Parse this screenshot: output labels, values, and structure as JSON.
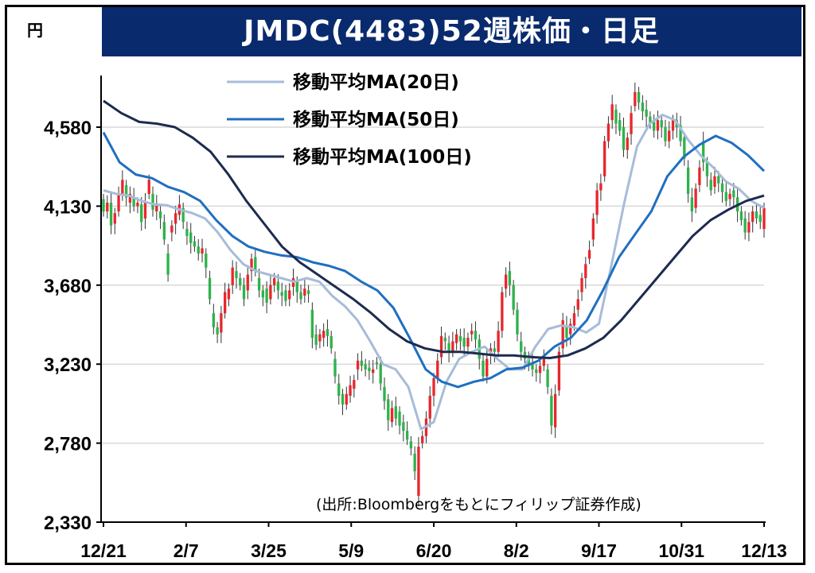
{
  "header": {
    "title": "JMDC(4483)52週株価・日足",
    "unit": "円"
  },
  "source": "(出所:Bloombergをもとにフィリップ証券作成)",
  "colors": {
    "title_bg": "#0a2a6e",
    "up": "#e8272d",
    "down": "#2db34a",
    "ma20": "#a6bcd9",
    "ma50": "#1f6fc0",
    "ma100": "#1d2b4f",
    "grid": "#d9d9d9"
  },
  "chart_data": {
    "type": "candlestick",
    "title": "JMDC(4483)52週株価・日足",
    "ylabel": "円",
    "ylim": [
      2330,
      4800
    ],
    "yticks": [
      2330,
      2780,
      3230,
      3680,
      4130,
      4580
    ],
    "ytick_labels": [
      "2,330",
      "2,780",
      "3,230",
      "3,680",
      "4,130",
      "4,580"
    ],
    "xtick_labels": [
      "12/21",
      "2/7",
      "3/25",
      "5/9",
      "6/20",
      "8/2",
      "9/17",
      "10/31",
      "12/13"
    ],
    "grid": "horizontal",
    "legend_position": "top-center",
    "series": [
      {
        "name": "移動平均MA(20日)",
        "key": "ma20",
        "values": [
          4220,
          4200,
          4190,
          4160,
          4140,
          4135,
          4110,
          4090,
          4060,
          3980,
          3880,
          3800,
          3760,
          3740,
          3720,
          3700,
          3720,
          3700,
          3620,
          3560,
          3480,
          3360,
          3230,
          3200,
          3100,
          2860,
          2900,
          3130,
          3260,
          3300,
          3330,
          3260,
          3200,
          3200,
          3330,
          3430,
          3450,
          3440,
          3410,
          3460,
          3800,
          4150,
          4470,
          4600,
          4650,
          4620,
          4510,
          4420,
          4350,
          4270,
          4230,
          4160,
          4120
        ]
      },
      {
        "name": "移動平均MA(50日)",
        "key": "ma50",
        "values": [
          4550,
          4380,
          4310,
          4290,
          4240,
          4210,
          4160,
          4050,
          3960,
          3900,
          3870,
          3850,
          3840,
          3810,
          3790,
          3760,
          3700,
          3650,
          3550,
          3380,
          3200,
          3130,
          3100,
          3130,
          3150,
          3200,
          3210,
          3250,
          3330,
          3380,
          3480,
          3650,
          3840,
          3970,
          4100,
          4300,
          4410,
          4480,
          4530,
          4490,
          4420,
          4330
        ]
      },
      {
        "name": "移動平均MA(100日)",
        "key": "ma100",
        "values": [
          4730,
          4660,
          4610,
          4600,
          4580,
          4520,
          4440,
          4310,
          4160,
          4030,
          3900,
          3810,
          3740,
          3670,
          3600,
          3520,
          3430,
          3360,
          3320,
          3300,
          3300,
          3290,
          3280,
          3280,
          3270,
          3265,
          3280,
          3320,
          3380,
          3480,
          3600,
          3720,
          3840,
          3960,
          4050,
          4110,
          4160,
          4190
        ]
      }
    ],
    "candles": [
      [
        4170,
        4100
      ],
      [
        4100,
        4150
      ],
      [
        4150,
        4020
      ],
      [
        4030,
        4090
      ],
      [
        4100,
        4200
      ],
      [
        4200,
        4280
      ],
      [
        4250,
        4180
      ],
      [
        4150,
        4200
      ],
      [
        4180,
        4130
      ],
      [
        4130,
        4150
      ],
      [
        4140,
        4040
      ],
      [
        4060,
        4150
      ],
      [
        4200,
        4280
      ],
      [
        4200,
        4110
      ],
      [
        4100,
        4140
      ],
      [
        4100,
        4060
      ],
      [
        4040,
        3940
      ],
      [
        3860,
        3740
      ],
      [
        3980,
        4020
      ],
      [
        4030,
        4090
      ],
      [
        4080,
        4140
      ],
      [
        4120,
        4040
      ],
      [
        4000,
        3960
      ],
      [
        3980,
        3920
      ],
      [
        3930,
        3900
      ],
      [
        3900,
        3860
      ],
      [
        3860,
        3890
      ],
      [
        3860,
        3780
      ],
      [
        3720,
        3600
      ],
      [
        3520,
        3440
      ],
      [
        3440,
        3400
      ],
      [
        3410,
        3520
      ],
      [
        3520,
        3640
      ],
      [
        3600,
        3660
      ],
      [
        3680,
        3780
      ],
      [
        3760,
        3720
      ],
      [
        3720,
        3680
      ],
      [
        3680,
        3600
      ],
      [
        3650,
        3740
      ],
      [
        3760,
        3830
      ],
      [
        3840,
        3760
      ],
      [
        3720,
        3650
      ],
      [
        3650,
        3610
      ],
      [
        3660,
        3580
      ],
      [
        3600,
        3680
      ],
      [
        3680,
        3720
      ],
      [
        3700,
        3650
      ],
      [
        3640,
        3620
      ],
      [
        3650,
        3590
      ],
      [
        3600,
        3650
      ],
      [
        3670,
        3720
      ],
      [
        3700,
        3640
      ],
      [
        3640,
        3600
      ],
      [
        3620,
        3660
      ],
      [
        3650,
        3630
      ],
      [
        3540,
        3380
      ],
      [
        3400,
        3340
      ],
      [
        3360,
        3400
      ],
      [
        3380,
        3420
      ],
      [
        3430,
        3390
      ],
      [
        3390,
        3320
      ],
      [
        3260,
        3160
      ],
      [
        3120,
        3050
      ],
      [
        3060,
        3000
      ],
      [
        3000,
        3060
      ],
      [
        3050,
        3110
      ],
      [
        3090,
        3140
      ],
      [
        3200,
        3250
      ],
      [
        3250,
        3220
      ],
      [
        3230,
        3200
      ],
      [
        3210,
        3190
      ],
      [
        3180,
        3200
      ],
      [
        3240,
        3230
      ],
      [
        3230,
        3120
      ],
      [
        3100,
        3020
      ],
      [
        3030,
        2910
      ],
      [
        2900,
        2980
      ],
      [
        2990,
        2920
      ],
      [
        2960,
        2880
      ],
      [
        2900,
        2850
      ],
      [
        2850,
        2800
      ],
      [
        2790,
        2750
      ],
      [
        2720,
        2620
      ],
      [
        2480,
        2760
      ],
      [
        2780,
        2820
      ],
      [
        2820,
        2920
      ],
      [
        2920,
        3050
      ],
      [
        3050,
        3150
      ],
      [
        3150,
        3250
      ],
      [
        3270,
        3390
      ],
      [
        3380,
        3360
      ],
      [
        3350,
        3300
      ],
      [
        3300,
        3360
      ],
      [
        3350,
        3400
      ],
      [
        3390,
        3360
      ],
      [
        3380,
        3330
      ],
      [
        3330,
        3380
      ],
      [
        3400,
        3420
      ],
      [
        3420,
        3370
      ],
      [
        3370,
        3260
      ],
      [
        3250,
        3160
      ],
      [
        3160,
        3260
      ],
      [
        3280,
        3320
      ],
      [
        3320,
        3300
      ],
      [
        3300,
        3420
      ],
      [
        3420,
        3640
      ],
      [
        3660,
        3740
      ],
      [
        3760,
        3680
      ],
      [
        3680,
        3540
      ],
      [
        3540,
        3400
      ],
      [
        3360,
        3300
      ],
      [
        3300,
        3260
      ],
      [
        3260,
        3220
      ],
      [
        3240,
        3200
      ],
      [
        3200,
        3180
      ],
      [
        3180,
        3220
      ],
      [
        3220,
        3260
      ],
      [
        3200,
        3100
      ],
      [
        3050,
        2880
      ],
      [
        2870,
        3060
      ],
      [
        3080,
        3300
      ],
      [
        3320,
        3480
      ],
      [
        3450,
        3380
      ],
      [
        3400,
        3460
      ],
      [
        3450,
        3520
      ],
      [
        3540,
        3600
      ],
      [
        3640,
        3720
      ],
      [
        3720,
        3800
      ],
      [
        3830,
        3880
      ],
      [
        3940,
        4060
      ],
      [
        4080,
        4220
      ],
      [
        4220,
        4260
      ],
      [
        4300,
        4500
      ],
      [
        4500,
        4600
      ],
      [
        4620,
        4710
      ],
      [
        4680,
        4600
      ],
      [
        4620,
        4560
      ],
      [
        4580,
        4450
      ],
      [
        4450,
        4520
      ],
      [
        4540,
        4660
      ],
      [
        4700,
        4780
      ],
      [
        4780,
        4720
      ],
      [
        4720,
        4670
      ],
      [
        4680,
        4640
      ],
      [
        4640,
        4600
      ],
      [
        4610,
        4560
      ],
      [
        4560,
        4620
      ],
      [
        4620,
        4580
      ],
      [
        4580,
        4500
      ],
      [
        4500,
        4560
      ],
      [
        4560,
        4620
      ],
      [
        4620,
        4580
      ],
      [
        4590,
        4500
      ],
      [
        4520,
        4400
      ],
      [
        4350,
        4200
      ],
      [
        4180,
        4100
      ],
      [
        4120,
        4230
      ],
      [
        4250,
        4350
      ],
      [
        4500,
        4380
      ],
      [
        4380,
        4300
      ],
      [
        4280,
        4220
      ],
      [
        4240,
        4300
      ],
      [
        4300,
        4260
      ],
      [
        4260,
        4210
      ],
      [
        4210,
        4160
      ],
      [
        4170,
        4200
      ],
      [
        4220,
        4180
      ],
      [
        4180,
        4100
      ],
      [
        4100,
        4050
      ],
      [
        4060,
        3980
      ],
      [
        3980,
        4040
      ],
      [
        4040,
        4100
      ],
      [
        4100,
        4060
      ],
      [
        4080,
        4040
      ],
      [
        4000,
        4120
      ]
    ]
  }
}
